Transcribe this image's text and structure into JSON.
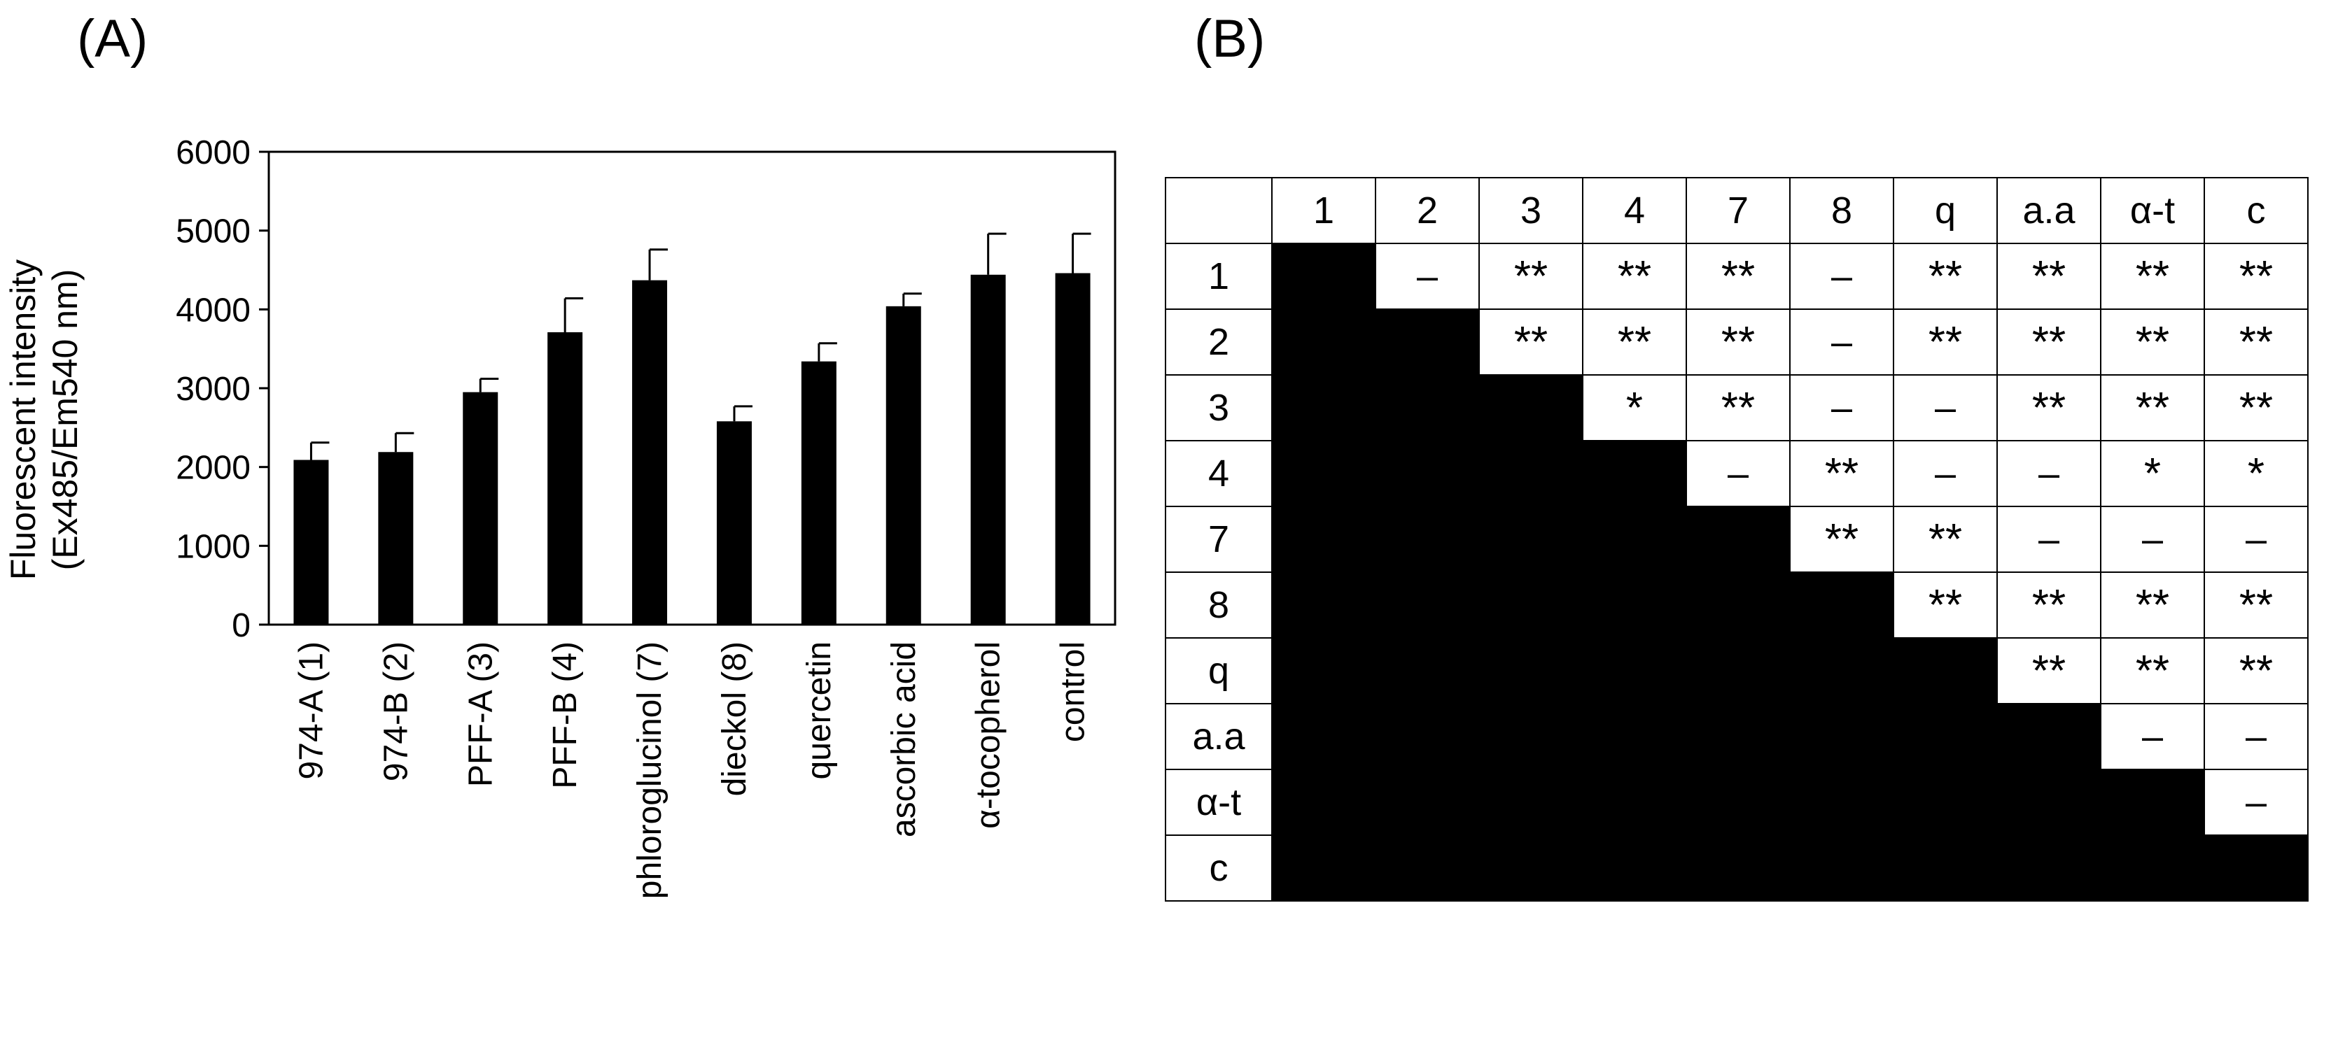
{
  "panels": {
    "a_label": "(A)",
    "b_label": "(B)"
  },
  "chart_data": {
    "type": "bar",
    "title": "",
    "ylabel_line1": "Fluorescent intensity",
    "ylabel_line2": "(Ex485/Em540 nm)",
    "xlabel": "",
    "categories": [
      "974-A (1)",
      "974-B (2)",
      "PFF-A (3)",
      "PFF-B (4)",
      "phloroglucinol (7)",
      "dieckol (8)",
      "quercetin",
      "ascorbic acid",
      "α-tocopherol",
      "control"
    ],
    "values": [
      2090,
      2190,
      2950,
      3710,
      4370,
      2580,
      3340,
      4040,
      4440,
      4460
    ],
    "errors": [
      220,
      240,
      170,
      430,
      390,
      190,
      230,
      160,
      520,
      500
    ],
    "ylim": [
      0,
      6000
    ],
    "yticks": [
      0,
      1000,
      2000,
      3000,
      4000,
      5000,
      6000
    ],
    "grid": false,
    "legend": "none",
    "bar_color": "#000000"
  },
  "sig_table": {
    "col_headers": [
      "1",
      "2",
      "3",
      "4",
      "7",
      "8",
      "q",
      "a.a",
      "α-t",
      "c"
    ],
    "row_headers": [
      "1",
      "2",
      "3",
      "4",
      "7",
      "8",
      "q",
      "a.a",
      "α-t",
      "c"
    ],
    "rows": [
      [
        "",
        "–",
        "**",
        "**",
        "**",
        "–",
        "**",
        "**",
        "**",
        "**"
      ],
      [
        "",
        "",
        "**",
        "**",
        "**",
        "–",
        "**",
        "**",
        "**",
        "**"
      ],
      [
        "",
        "",
        "",
        "*",
        "**",
        "–",
        "–",
        "**",
        "**",
        "**"
      ],
      [
        "",
        "",
        "",
        "",
        "–",
        "**",
        "–",
        "–",
        "*",
        "*"
      ],
      [
        "",
        "",
        "",
        "",
        "",
        "**",
        "**",
        "–",
        "–",
        "–"
      ],
      [
        "",
        "",
        "",
        "",
        "",
        "",
        "**",
        "**",
        "**",
        "**"
      ],
      [
        "",
        "",
        "",
        "",
        "",
        "",
        "",
        "**",
        "**",
        "**"
      ],
      [
        "",
        "",
        "",
        "",
        "",
        "",
        "",
        "",
        "–",
        "–"
      ],
      [
        "",
        "",
        "",
        "",
        "",
        "",
        "",
        "",
        "",
        "–"
      ],
      [
        "",
        "",
        "",
        "",
        "",
        "",
        "",
        "",
        "",
        ""
      ]
    ]
  }
}
